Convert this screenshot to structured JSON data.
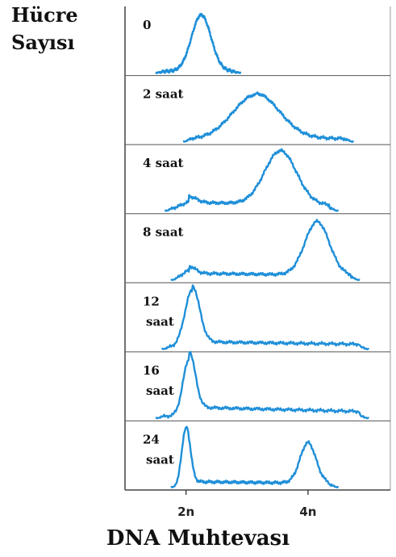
{
  "chart_data": {
    "type": "line",
    "ylabel": "Hücre\nSayısı",
    "xlabel": "DNA Muhtevası",
    "x_ticks": [
      "2n",
      "4n"
    ],
    "colors": {
      "trace": "#1f8fd8"
    },
    "panels": [
      {
        "label": [
          "0"
        ],
        "peaks": [
          {
            "x": 2.25,
            "h": 0.95,
            "w": 0.16
          }
        ],
        "x_start": 1.5,
        "x_end": 2.9,
        "baseline": 0.03,
        "tail": 0.0
      },
      {
        "label": [
          "2 saat"
        ],
        "peaks": [
          {
            "x": 3.15,
            "h": 0.75,
            "w": 0.38
          }
        ],
        "x_start": 1.95,
        "x_end": 4.75,
        "baseline": 0.05,
        "tail": 0.02
      },
      {
        "label": [
          "4 saat"
        ],
        "peaks": [
          {
            "x": 2.05,
            "h": 0.1,
            "w": 0.12
          },
          {
            "x": 3.55,
            "h": 0.9,
            "w": 0.26
          }
        ],
        "x_start": 1.65,
        "x_end": 4.5,
        "baseline": 0.05,
        "tail": 0.1
      },
      {
        "label": [
          "8 saat"
        ],
        "peaks": [
          {
            "x": 2.05,
            "h": 0.12,
            "w": 0.1
          },
          {
            "x": 4.15,
            "h": 0.9,
            "w": 0.2
          }
        ],
        "x_start": 1.75,
        "x_end": 4.85,
        "baseline": 0.04,
        "tail": 0.08
      },
      {
        "label": [
          "12",
          "saat"
        ],
        "peaks": [
          {
            "x": 2.1,
            "h": 0.95,
            "w": 0.12
          }
        ],
        "x_start": 1.6,
        "x_end": 5.0,
        "baseline": 0.04,
        "tail": 0.09
      },
      {
        "label": [
          "16",
          "saat"
        ],
        "peaks": [
          {
            "x": 2.05,
            "h": 0.95,
            "w": 0.1
          }
        ],
        "x_start": 1.5,
        "x_end": 5.0,
        "baseline": 0.04,
        "tail": 0.15
      },
      {
        "label": [
          "24",
          "saat"
        ],
        "peaks": [
          {
            "x": 2.0,
            "h": 0.95,
            "w": 0.07
          },
          {
            "x": 4.0,
            "h": 0.68,
            "w": 0.13
          }
        ],
        "x_start": 1.75,
        "x_end": 4.5,
        "baseline": 0.04,
        "tail": 0.06
      }
    ]
  }
}
